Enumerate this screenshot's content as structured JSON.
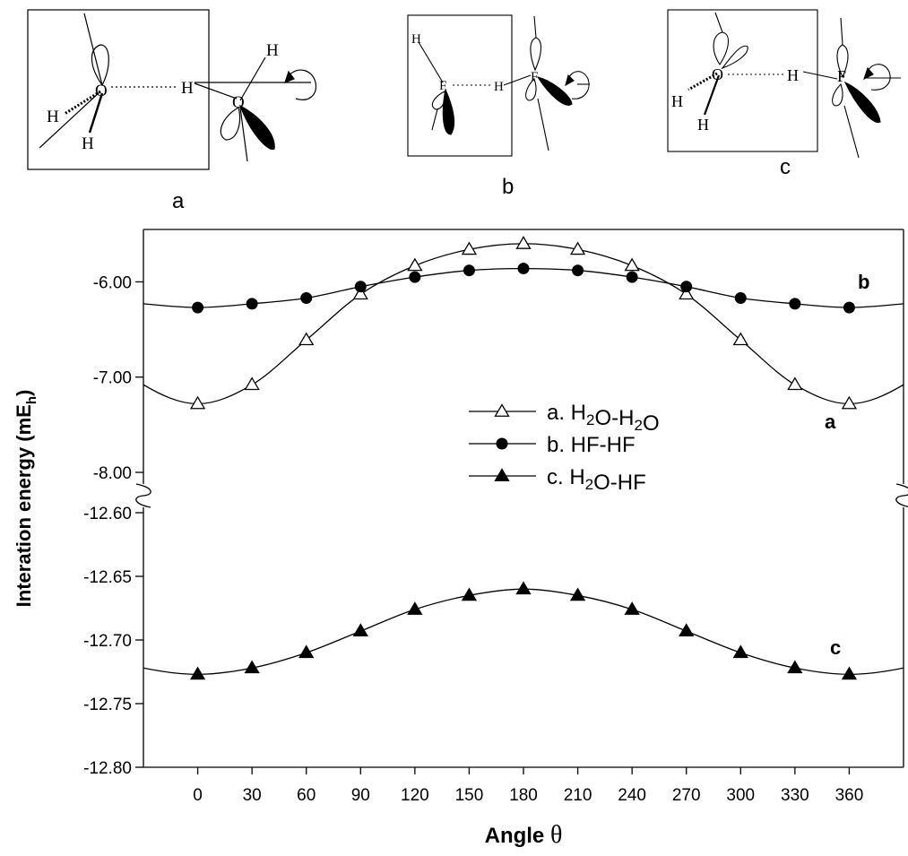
{
  "diagrams": [
    {
      "label": "a",
      "atoms": {
        "o_left": "O",
        "h_left1": "H",
        "h_left2": "H",
        "h_bridge": "H",
        "o_right": "O",
        "h_right": "H"
      }
    },
    {
      "label": "b",
      "atoms": {
        "h_left": "H",
        "f_left": "F",
        "h_bridge": "H",
        "f_right": "F"
      }
    },
    {
      "label": "c",
      "atoms": {
        "o_left": "O",
        "h_left1": "H",
        "h_left2": "H",
        "h_bridge": "H",
        "f_right": "F"
      }
    }
  ],
  "chart_data": {
    "type": "line",
    "title": "",
    "xlabel": "Angle",
    "xlabel_symbol": "θ",
    "ylabel_main": "Interation energy (mE",
    "ylabel_sub": "h",
    "ylabel_close": ")",
    "x": [
      0,
      30,
      60,
      90,
      120,
      150,
      180,
      210,
      240,
      270,
      300,
      330,
      360
    ],
    "xlim": [
      -30,
      390
    ],
    "x_ticks": [
      "0",
      "30",
      "60",
      "90",
      "120",
      "150",
      "180",
      "210",
      "240",
      "270",
      "300",
      "330",
      "360"
    ],
    "upper_panel": {
      "ylim": [
        -8.0,
        -5.45
      ],
      "y_ticks": [
        {
          "value": -6.0,
          "label": "-6.00"
        },
        {
          "value": -7.0,
          "label": "-7.00"
        },
        {
          "value": -8.0,
          "label": "-8.00"
        }
      ]
    },
    "lower_panel": {
      "ylim": [
        -12.8,
        -12.6
      ],
      "y_ticks": [
        {
          "value": -12.6,
          "label": "-12.60"
        },
        {
          "value": -12.65,
          "label": "-12.65"
        },
        {
          "value": -12.7,
          "label": "-12.70"
        },
        {
          "value": -12.75,
          "label": "-12.75"
        },
        {
          "value": -12.8,
          "label": "-12.80"
        }
      ]
    },
    "series": [
      {
        "key": "a",
        "panel": "upper",
        "marker": "triangle-open",
        "values": [
          -7.28,
          -7.08,
          -6.61,
          -6.13,
          -5.83,
          -5.66,
          -5.6,
          -5.66,
          -5.83,
          -6.13,
          -6.61,
          -7.08,
          -7.28
        ],
        "end_label": "a"
      },
      {
        "key": "b",
        "panel": "upper",
        "marker": "circle-filled",
        "values": [
          -6.27,
          -6.23,
          -6.17,
          -6.05,
          -5.95,
          -5.88,
          -5.86,
          -5.88,
          -5.95,
          -6.05,
          -6.17,
          -6.23,
          -6.27
        ],
        "end_label": "b"
      },
      {
        "key": "c",
        "panel": "lower",
        "marker": "triangle-filled",
        "values": [
          -12.727,
          -12.722,
          -12.71,
          -12.693,
          -12.676,
          -12.665,
          -12.66,
          -12.665,
          -12.676,
          -12.693,
          -12.71,
          -12.722,
          -12.727
        ],
        "end_label": "c"
      }
    ],
    "legend": {
      "placement": "center",
      "entries": [
        {
          "prefix": "a. H",
          "sub1": "2",
          "mid": "O-H",
          "sub2": "2",
          "suffix": "O",
          "marker": "triangle-open"
        },
        {
          "prefix": "b. HF-HF",
          "sub1": "",
          "mid": "",
          "sub2": "",
          "suffix": "",
          "marker": "circle-filled"
        },
        {
          "prefix": "c. H",
          "sub1": "2",
          "mid": "O-HF",
          "sub2": "",
          "suffix": "",
          "marker": "triangle-filled"
        }
      ]
    },
    "axis_break": true,
    "grid": false
  }
}
